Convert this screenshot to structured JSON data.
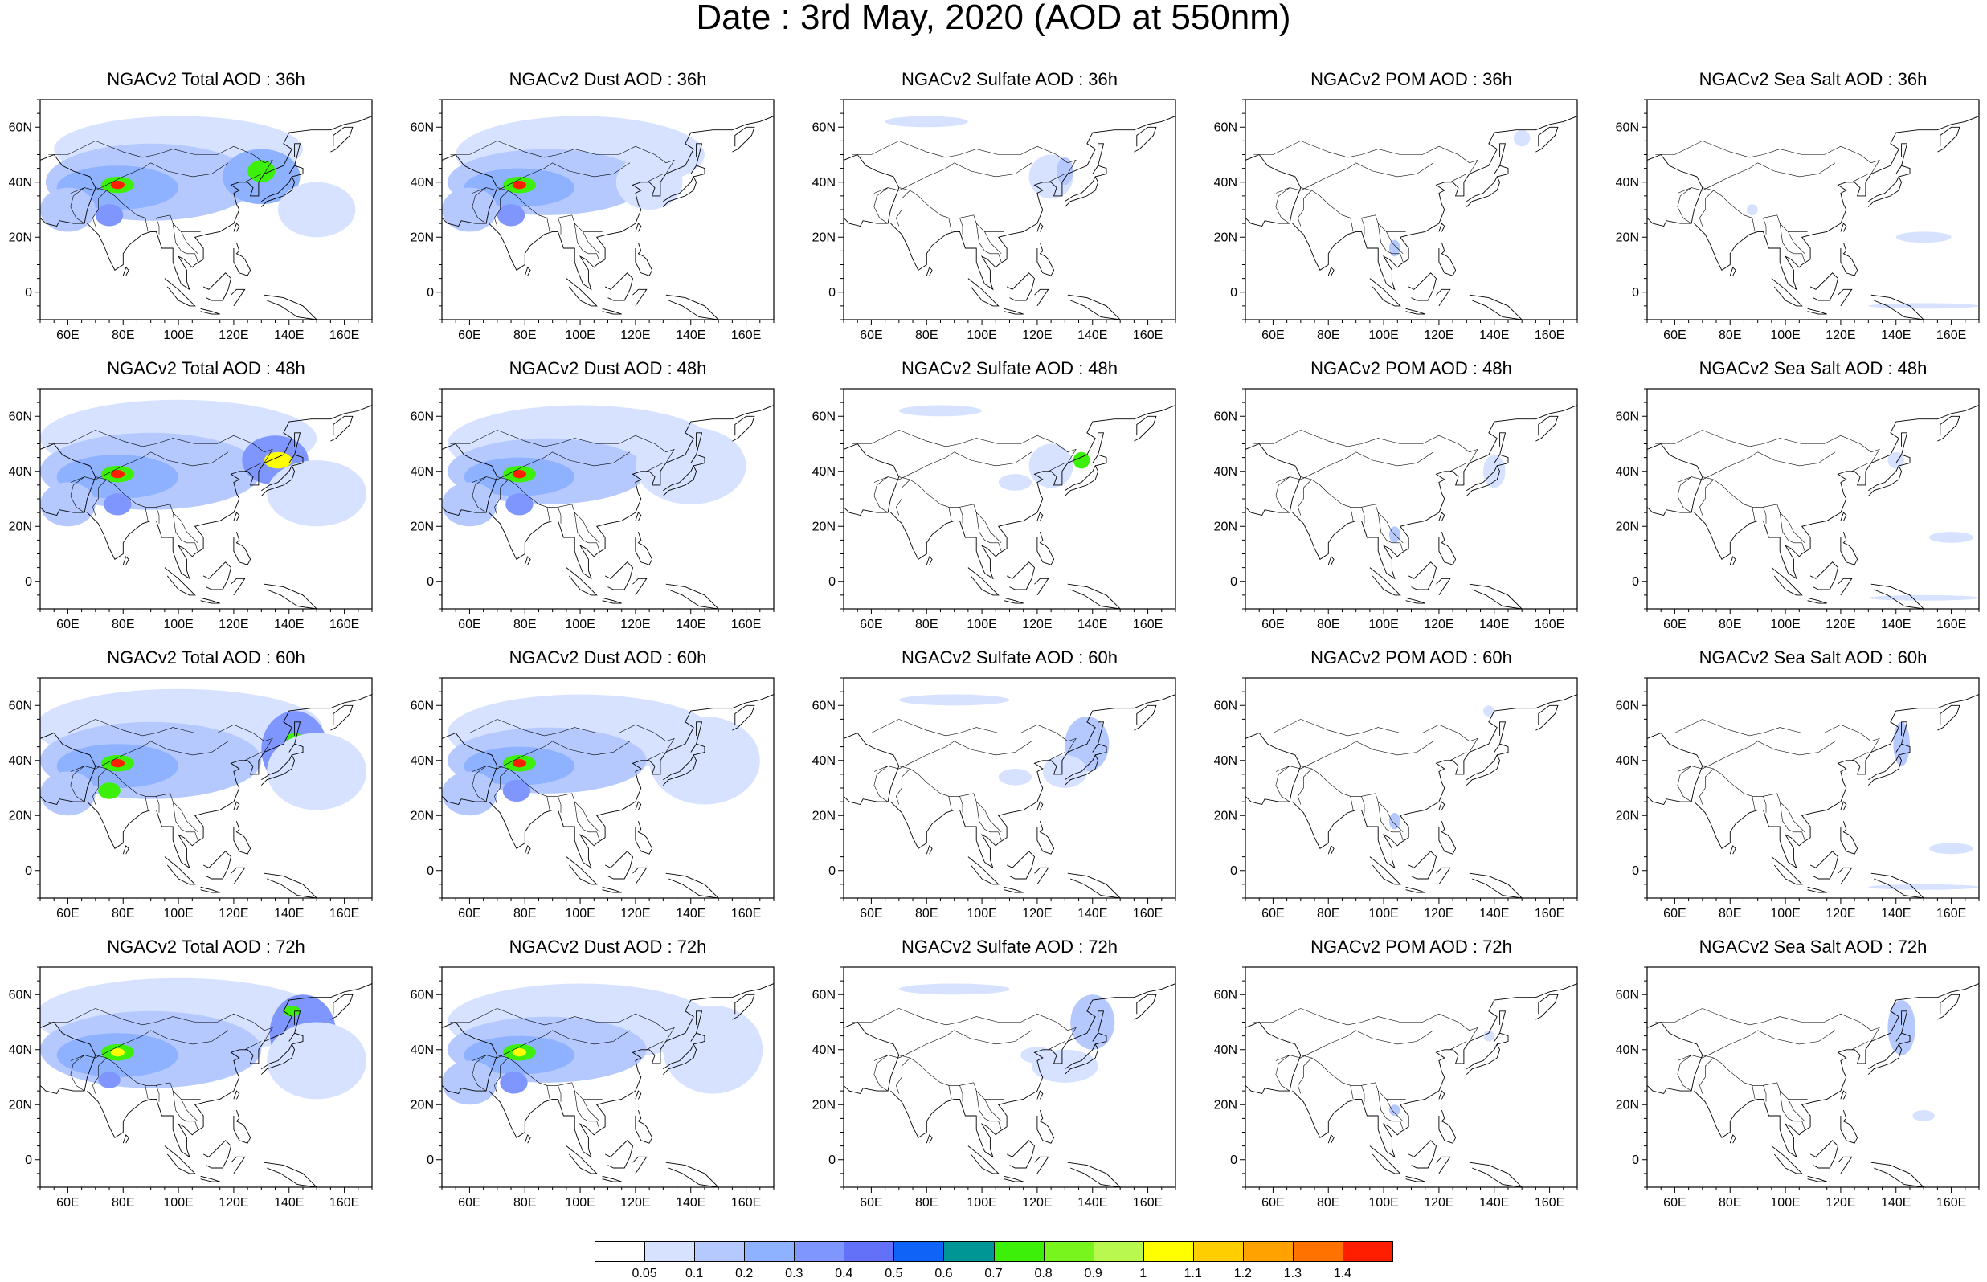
{
  "figure": {
    "title": "Date : 3rd May, 2020 (AOD at 550nm)"
  },
  "map": {
    "lon_range": [
      50,
      170
    ],
    "lat_range": [
      -10,
      70
    ],
    "x_tick_labels": [
      "60E",
      "80E",
      "100E",
      "120E",
      "140E",
      "160E"
    ],
    "x_tick_values": [
      60,
      80,
      100,
      120,
      140,
      160
    ],
    "y_tick_labels": [
      "60N",
      "40N",
      "20N",
      "0"
    ],
    "y_tick_values": [
      60,
      40,
      20,
      0
    ],
    "coastline_color": "#000000"
  },
  "panels": [
    {
      "title": "NGACv2 Total AOD : 36h"
    },
    {
      "title": "NGACv2 Dust AOD : 36h"
    },
    {
      "title": "NGACv2 Sulfate AOD : 36h"
    },
    {
      "title": "NGACv2 POM AOD : 36h"
    },
    {
      "title": "NGACv2 Sea Salt AOD : 36h"
    },
    {
      "title": "NGACv2 Total AOD : 48h"
    },
    {
      "title": "NGACv2 Dust AOD : 48h"
    },
    {
      "title": "NGACv2 Sulfate AOD : 48h"
    },
    {
      "title": "NGACv2 POM AOD : 48h"
    },
    {
      "title": "NGACv2 Sea Salt AOD : 48h"
    },
    {
      "title": "NGACv2 Total AOD : 60h"
    },
    {
      "title": "NGACv2 Dust AOD : 60h"
    },
    {
      "title": "NGACv2 Sulfate AOD : 60h"
    },
    {
      "title": "NGACv2 POM AOD : 60h"
    },
    {
      "title": "NGACv2 Sea Salt AOD : 60h"
    },
    {
      "title": "NGACv2 Total AOD : 72h"
    },
    {
      "title": "NGACv2 Dust AOD : 72h"
    },
    {
      "title": "NGACv2 Sulfate AOD : 72h"
    },
    {
      "title": "NGACv2 POM AOD : 72h"
    },
    {
      "title": "NGACv2 Sea Salt  AOD : 72h"
    }
  ],
  "colorbar": {
    "labels": [
      "0.05",
      "0.1",
      "0.2",
      "0.3",
      "0.4",
      "0.5",
      "0.6",
      "0.7",
      "0.8",
      "0.9",
      "1",
      "1.1",
      "1.2",
      "1.3",
      "1.4"
    ],
    "colors": [
      "#ffffff",
      "#d6e2ff",
      "#b5c9ff",
      "#8eb2ff",
      "#7f96ff",
      "#6370f8",
      "#0f63f6",
      "#009696",
      "#3cf00a",
      "#79f51e",
      "#b9f84e",
      "#ffff00",
      "#ffce00",
      "#ffa200",
      "#ff7200",
      "#ff1e00"
    ]
  },
  "aerosol_fill_colors": {
    "light": "#d6e2ff",
    "medium": "#b5c9ff",
    "strong": "#8eb2ff",
    "heavy": "#7f96ff",
    "peak": "#6370f8",
    "green": "#3cf00a",
    "yellow": "#ffff00",
    "orange": "#ffa200",
    "red": "#ff1e00"
  }
}
